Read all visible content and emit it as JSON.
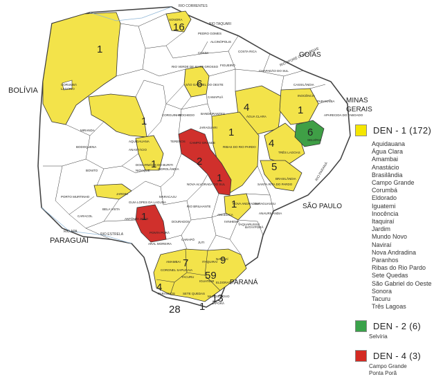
{
  "map": {
    "countries": [
      "BOLÍVIA",
      "PARAGUAI"
    ],
    "states": [
      "GOIÁS",
      "MINAS GERAIS",
      "SÃO PAULO",
      "PARANÁ"
    ],
    "counts": [
      "1",
      "16",
      "6",
      "1",
      "4",
      "1",
      "1",
      "2",
      "6",
      "4",
      "5",
      "1",
      "1",
      "1",
      "1",
      "7",
      "9",
      "59",
      "4",
      "28",
      "13",
      "1"
    ],
    "rivers": [
      "RIO CORRENTES",
      "RIO TAQUARI",
      "RIO APORÉ OU DO PEIXE",
      "RIO APA",
      "RIO ESTRELA",
      "RIO PARANÁ"
    ],
    "municipalities": [
      "SONORA",
      "PEDRO GOMES",
      "ALCINÓPOLIS",
      "COSTA RICA",
      "COXIM",
      "FIGUEIRÓ",
      "CHAPADÃO DO SUL",
      "RIO VERDE DE MATO GROSSO",
      "CORUMBÁ",
      "LADÁRIO",
      "CASSILÂNDIA",
      "SÃO GABRIEL DO OESTE",
      "CAMAPUÃ",
      "INOCÊNCIA",
      "PARANAÍBA",
      "APARECIDA DO TABOADO",
      "SELVÍRIA",
      "CORGUINHO",
      "ROCHEDO",
      "JARAGUARI",
      "BANDEIRANTES",
      "ÁGUA CLARA",
      "MIRANDA",
      "AQUIDAUANA",
      "ANASTÁCIO",
      "DOIS IRMÃOS DO BURITI",
      "TERENOS",
      "CAMPO GRANDE",
      "RIBAS DO RIO PARDO",
      "TRÊS LAGOAS",
      "BRASILÂNDIA",
      "SANTA RITA DO PARDO",
      "BODOQUENA",
      "BONITO",
      "NIOAQUE",
      "SIDROLÂNDIA",
      "NOVA ALVORADA DO SUL",
      "PORTO MURTINHO",
      "JARDIM",
      "GUIA LOPES DA LAGUNA",
      "BELA VISTA",
      "CARACOL",
      "ANTÔNIO JOÃO",
      "PONTA PORÃ",
      "MARACAJU",
      "RIO BRILHANTE",
      "NOVA ANDRADINA",
      "BATAGUASSU",
      "ANAURILÂNDIA",
      "DOURADOS",
      "ANGÉLICA",
      "IVINHEMA",
      "TAQUARUSSU",
      "BATAYPORÃ",
      "ARAL MOREIRA",
      "CARAPÓ",
      "JUTI",
      "NAVIRAÍ",
      "AMAMBAI",
      "CORONEL SAPUCAIA",
      "TACURU",
      "IGUATEMI",
      "ITAQUIRAÍ",
      "PARANHOS",
      "SETE QUEDAS",
      "ELDORADO",
      "MUNDO NOVO",
      "JAPORÃ"
    ]
  },
  "legend": {
    "groups": [
      {
        "title": "DEN - 1 (172)",
        "color": "#f5e600",
        "items": [
          "Aquidauana",
          "Água Clara",
          "Amambai",
          "Anastácio",
          "Brasilândia",
          "Campo Grande",
          "Corumbá",
          "Eldorado",
          "Iguatemi",
          "Inocência",
          "Itaquiraí",
          "Jardim",
          "Mundo Novo",
          "Naviraí",
          "Nova Andradina",
          "Paranhos",
          "Ribas do Rio Pardo",
          "Sete Quedas",
          "São Gabriel do Oeste",
          "Sonora",
          "Tacuru",
          "Três Lagoas"
        ]
      },
      {
        "title": "DEN - 2 (6)",
        "color": "#3aa24a",
        "items": [
          "Selvíria"
        ]
      },
      {
        "title": "DEN - 4 (3)",
        "color": "#d42a22",
        "items": [
          "Campo Grande",
          "Ponta Porã"
        ]
      }
    ]
  },
  "colors": {
    "yellow": "#f3e34a",
    "green": "#3f9f46",
    "red": "#d0302c",
    "white": "#ffffff",
    "border": "#333333"
  }
}
